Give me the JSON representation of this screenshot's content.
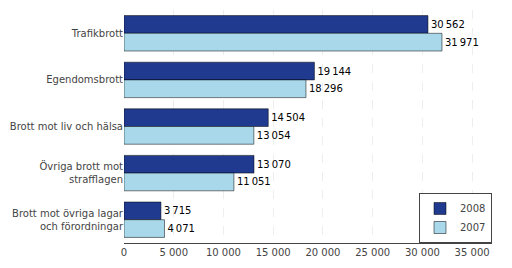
{
  "chart_data": {
    "type": "bar",
    "orientation": "horizontal",
    "categories": [
      "Trafikbrott",
      "Egendomsbrott",
      "Brott mot liv och hälsa",
      "Övriga brott mot\nstrafflagen",
      "Brott mot övriga lagar\noch förordningar"
    ],
    "series": [
      {
        "name": "2008",
        "color": "#1F3A8F",
        "values": [
          30562,
          19144,
          14504,
          13070,
          3715
        ],
        "value_labels": [
          "30 562",
          "19 144",
          "14 504",
          "13 070",
          "3 715"
        ]
      },
      {
        "name": "2007",
        "color": "#A8D8EA",
        "values": [
          31971,
          18296,
          13054,
          11051,
          4071
        ],
        "value_labels": [
          "31 971",
          "18 296",
          "13 054",
          "11 051",
          "4 071"
        ]
      }
    ],
    "xlim": [
      0,
      37000
    ],
    "xticks": [
      0,
      {
        "value": 5000,
        "label": "5 000"
      },
      {
        "value": 10000,
        "label": "10 000"
      },
      {
        "value": 15000,
        "label": "15 000"
      },
      {
        "value": 20000,
        "label": "20 000"
      },
      {
        "value": 25000,
        "label": "25 000"
      },
      {
        "value": 30000,
        "label": "30 000"
      },
      {
        "value": 35000,
        "label": "35 000"
      }
    ],
    "grid": true,
    "legend": "lower right",
    "data_labels": true
  }
}
